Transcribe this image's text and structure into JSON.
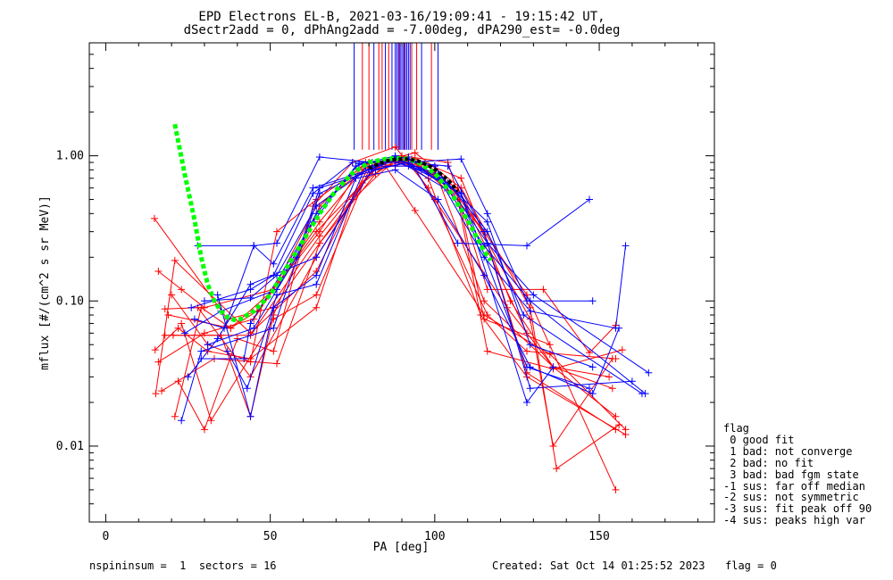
{
  "chart_data": {
    "type": "scatter",
    "title": "EPD Electrons EL-B, 2021-03-16/19:09:41 - 19:15:42 UT,",
    "subtitle": "dSectr2add = 0, dPhAng2add = -7.00deg, dPA290_est=  -0.0deg",
    "xlabel": "PA [deg]",
    "ylabel": "mflux [#/(cm^2 s sr MeV)]",
    "xlim": [
      -5,
      185
    ],
    "ylim": [
      0.003,
      6.0
    ],
    "yscale": "log",
    "xticks": [
      "0",
      "50",
      "100",
      "150"
    ],
    "xtick_values": [
      0,
      50,
      100,
      150
    ],
    "yticks": [
      "0.01",
      "0.10",
      "1.00"
    ],
    "ytick_values": [
      0.01,
      0.1,
      1.0
    ],
    "colors": {
      "red": "#ff0000",
      "blue": "#0000ff",
      "green": "#00ff00",
      "black": "#000000"
    },
    "peak_lines": {
      "blue": [
        75.5,
        81.5,
        85.0,
        87.0,
        88.0,
        88.5,
        89.0,
        89.5,
        90.0,
        90.5,
        91.0,
        91.5,
        92.0,
        92.5,
        96.0,
        101.0
      ],
      "red": [
        78.0,
        80.0,
        83.0,
        84.0,
        86.0,
        89.2,
        90.8,
        93.0,
        94.5,
        99.0
      ],
      "top": 6.0,
      "bottom": 1.1
    },
    "series": [
      {
        "color": "red",
        "x": [
          14.8,
          37,
          51,
          65,
          82,
          90,
          100,
          115,
          136,
          155
        ],
        "y": [
          0.37,
          0.075,
          0.09,
          0.25,
          0.75,
          1.0,
          0.8,
          0.1,
          0.035,
          0.016
        ]
      },
      {
        "color": "red",
        "x": [
          15.2,
          21,
          44,
          64,
          80,
          89,
          98,
          114,
          128,
          158
        ],
        "y": [
          0.023,
          0.19,
          0.06,
          0.16,
          0.85,
          0.95,
          0.7,
          0.08,
          0.03,
          0.012
        ]
      },
      {
        "color": "red",
        "x": [
          16,
          23,
          30,
          51,
          65,
          80,
          88,
          92,
          107,
          115,
          135
        ],
        "y": [
          0.16,
          0.12,
          0.09,
          0.12,
          0.35,
          0.9,
          0.85,
          0.95,
          0.55,
          0.075,
          0.05
        ]
      },
      {
        "color": "red",
        "x": [
          15,
          22,
          31,
          44,
          64,
          75,
          87,
          100,
          115,
          128,
          155
        ],
        "y": [
          0.046,
          0.065,
          0.045,
          0.04,
          0.09,
          0.5,
          0.9,
          0.85,
          0.3,
          0.032,
          0.013
        ]
      },
      {
        "color": "red",
        "x": [
          16,
          30,
          45,
          51,
          64,
          80,
          93,
          107,
          116,
          136,
          157
        ],
        "y": [
          0.038,
          0.06,
          0.075,
          0.12,
          0.45,
          0.85,
          0.95,
          0.5,
          0.045,
          0.034,
          0.046
        ]
      },
      {
        "color": "red",
        "x": [
          17,
          33,
          52,
          65,
          83,
          94,
          108,
          129,
          137,
          156
        ],
        "y": [
          0.024,
          0.04,
          0.037,
          0.25,
          0.9,
          1.05,
          0.6,
          0.09,
          0.007,
          0.014
        ]
      },
      {
        "color": "red",
        "x": [
          18,
          28,
          44,
          64,
          78,
          85,
          94,
          115,
          135,
          158
        ],
        "y": [
          0.088,
          0.09,
          0.03,
          0.2,
          0.65,
          0.85,
          0.42,
          0.08,
          0.043,
          0.013
        ]
      },
      {
        "color": "red",
        "x": [
          19,
          38,
          51,
          65,
          77,
          88,
          100,
          115,
          128,
          155
        ],
        "y": [
          0.08,
          0.065,
          0.12,
          0.3,
          0.8,
          0.95,
          0.75,
          0.3,
          0.11,
          0.005
        ]
      },
      {
        "color": "red",
        "x": [
          20,
          31,
          44,
          52,
          64,
          80,
          92,
          107,
          129,
          136,
          154
        ],
        "y": [
          0.11,
          0.05,
          0.038,
          0.3,
          0.5,
          0.9,
          0.9,
          0.6,
          0.075,
          0.01,
          0.04
        ]
      },
      {
        "color": "red",
        "x": [
          20.5,
          35,
          44,
          51,
          65,
          79,
          92,
          100,
          122,
          136,
          154
        ],
        "y": [
          0.058,
          0.058,
          0.016,
          0.08,
          0.45,
          0.9,
          0.95,
          0.5,
          0.09,
          0.035,
          0.025
        ]
      },
      {
        "color": "red",
        "x": [
          21,
          29,
          38,
          46,
          64,
          83,
          90,
          104,
          116,
          133,
          147,
          155
        ],
        "y": [
          0.016,
          0.09,
          0.065,
          0.085,
          0.3,
          0.85,
          1.0,
          0.9,
          0.12,
          0.12,
          0.044,
          0.068
        ]
      },
      {
        "color": "red",
        "x": [
          22,
          30,
          40,
          51,
          63,
          75,
          88,
          98,
          116,
          128,
          155
        ],
        "y": [
          0.028,
          0.013,
          0.055,
          0.045,
          0.45,
          0.9,
          1.15,
          0.6,
          0.08,
          0.045,
          0.04
        ]
      },
      {
        "color": "red",
        "x": [
          23,
          32,
          51,
          64,
          80,
          94,
          108,
          123,
          136,
          153
        ],
        "y": [
          0.07,
          0.015,
          0.075,
          0.11,
          0.8,
          0.95,
          0.7,
          0.1,
          0.035,
          0.03
        ]
      },
      {
        "color": "red",
        "x": [
          18,
          44,
          65,
          82,
          95,
          107,
          128
        ],
        "y": [
          0.058,
          0.058,
          0.28,
          0.85,
          0.85,
          0.6,
          0.06
        ]
      },
      {
        "color": "blue",
        "x": [
          23,
          29,
          51,
          65,
          88,
          108,
          128,
          147
        ],
        "y": [
          0.015,
          0.045,
          0.065,
          0.55,
          0.98,
          0.55,
          0.035,
          0.025
        ]
      },
      {
        "color": "blue",
        "x": [
          24,
          35,
          52,
          64,
          77,
          88,
          101,
          115,
          129,
          164
        ],
        "y": [
          0.06,
          0.085,
          0.12,
          0.4,
          0.88,
          0.95,
          0.75,
          0.24,
          0.1,
          0.023
        ]
      },
      {
        "color": "blue",
        "x": [
          25,
          34,
          44,
          64,
          81,
          92,
          108,
          116,
          128,
          148
        ],
        "y": [
          0.03,
          0.055,
          0.13,
          0.2,
          0.8,
          0.9,
          0.95,
          0.4,
          0.1,
          0.1
        ]
      },
      {
        "color": "blue",
        "x": [
          27,
          36,
          45,
          52,
          65,
          81,
          92,
          107,
          128,
          147
        ],
        "y": [
          0.075,
          0.065,
          0.24,
          0.25,
          0.98,
          0.9,
          0.98,
          0.25,
          0.24,
          0.5
        ]
      },
      {
        "color": "blue",
        "x": [
          28,
          45,
          51,
          63,
          80,
          89,
          102,
          116,
          129,
          148
        ],
        "y": [
          0.24,
          0.24,
          0.18,
          0.6,
          0.8,
          0.95,
          0.7,
          0.35,
          0.05,
          0.035
        ]
      },
      {
        "color": "blue",
        "x": [
          30,
          44,
          52,
          64,
          81,
          88,
          103,
          115,
          129,
          155,
          158
        ],
        "y": [
          0.1,
          0.105,
          0.15,
          0.45,
          0.85,
          0.95,
          0.6,
          0.2,
          0.085,
          0.065,
          0.24
        ]
      },
      {
        "color": "blue",
        "x": [
          29,
          42,
          44,
          63,
          76,
          88,
          100,
          116,
          130,
          165
        ],
        "y": [
          0.04,
          0.04,
          0.07,
          0.35,
          0.85,
          1.0,
          0.85,
          0.25,
          0.11,
          0.032
        ]
      },
      {
        "color": "blue",
        "x": [
          26,
          44,
          51,
          63,
          75,
          88,
          96,
          108,
          128,
          136
        ],
        "y": [
          0.09,
          0.12,
          0.15,
          0.55,
          0.9,
          0.9,
          0.8,
          0.55,
          0.02,
          0.035
        ]
      },
      {
        "color": "blue",
        "x": [
          31,
          45,
          58,
          65,
          82,
          92,
          104,
          115,
          129,
          160
        ],
        "y": [
          0.05,
          0.065,
          0.2,
          0.6,
          0.8,
          0.9,
          0.85,
          0.3,
          0.025,
          0.028
        ]
      },
      {
        "color": "blue",
        "x": [
          34,
          44,
          51,
          64,
          76,
          88,
          101,
          115,
          129,
          148,
          156
        ],
        "y": [
          0.11,
          0.016,
          0.09,
          0.15,
          0.7,
          0.8,
          0.5,
          0.15,
          0.035,
          0.023,
          0.065
        ]
      },
      {
        "color": "blue",
        "x": [
          37,
          43,
          52,
          64,
          79,
          92,
          104,
          116,
          127,
          163
        ],
        "y": [
          0.045,
          0.025,
          0.11,
          0.13,
          0.85,
          0.85,
          0.65,
          0.3,
          0.08,
          0.023
        ]
      }
    ],
    "fit_curves": [
      {
        "color": "green",
        "style": "dashed",
        "x": [
          21,
          24,
          27,
          29,
          31,
          33,
          35,
          37,
          39,
          41,
          43,
          45,
          50,
          55,
          60,
          65,
          70,
          75,
          80,
          85,
          88,
          90,
          92,
          95,
          100,
          105,
          110,
          115,
          117
        ],
        "y": [
          1.65,
          0.75,
          0.36,
          0.2,
          0.13,
          0.1,
          0.085,
          0.077,
          0.074,
          0.075,
          0.08,
          0.085,
          0.11,
          0.17,
          0.26,
          0.4,
          0.58,
          0.76,
          0.9,
          0.95,
          0.96,
          0.96,
          0.95,
          0.9,
          0.76,
          0.55,
          0.36,
          0.22,
          0.19
        ]
      },
      {
        "color": "black",
        "style": "dashed",
        "x": [
          80,
          83,
          86,
          89,
          92,
          95,
          98,
          101,
          104,
          107
        ],
        "y": [
          0.82,
          0.88,
          0.93,
          0.95,
          0.95,
          0.92,
          0.86,
          0.78,
          0.68,
          0.57
        ]
      }
    ]
  },
  "legend": {
    "items": [
      "flag",
      " 0 good fit",
      " 1 bad: not converge",
      " 2 bad: no fit",
      " 3 bad: bad fgm state",
      "-1 sus: far off median",
      "-2 sus: not symmetric",
      "-3 sus: fit peak off 90",
      "-4 sus: peaks high var"
    ]
  },
  "footer": {
    "left": "nspininsum =  1  sectors = 16",
    "created": "Created: Sat Oct 14 01:25:52 2023",
    "flag": "flag = 0"
  }
}
